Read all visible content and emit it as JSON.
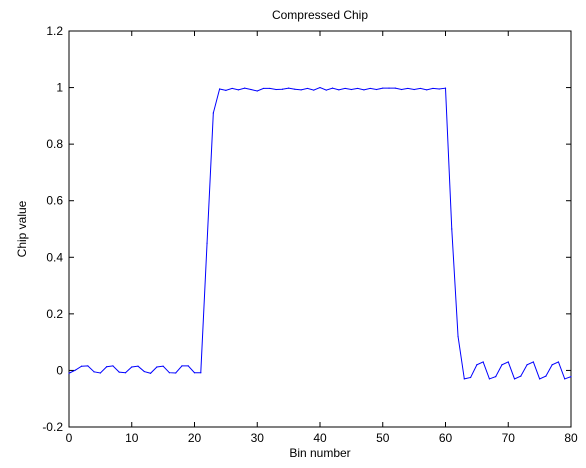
{
  "chart_data": {
    "type": "line",
    "title": "Compressed Chip",
    "xlabel": "Bin number",
    "ylabel": "Chip value",
    "xlim": [
      0,
      80
    ],
    "ylim": [
      -0.2,
      1.2
    ],
    "x_ticks": [
      0,
      10,
      20,
      30,
      40,
      50,
      60,
      70,
      80
    ],
    "y_ticks": [
      -0.2,
      0,
      0.2,
      0.4,
      0.6,
      0.8,
      1,
      1.2
    ],
    "x_tick_labels": [
      "0",
      "10",
      "20",
      "30",
      "40",
      "50",
      "60",
      "70",
      "80"
    ],
    "y_tick_labels": [
      "-0.2",
      "0",
      "0.2",
      "0.4",
      "0.6",
      "0.8",
      "1",
      "1.2"
    ],
    "grid": false,
    "line_color": "#0000ff",
    "series": [
      {
        "x": [
          0,
          1,
          2,
          3,
          4,
          5,
          6,
          7,
          8,
          9,
          10,
          11,
          12,
          13,
          14,
          15,
          16,
          17,
          18,
          19,
          20,
          21,
          22,
          23,
          24,
          25,
          26,
          27,
          28,
          29,
          30,
          31,
          32,
          33,
          34,
          35,
          36,
          37,
          38,
          39,
          40,
          41,
          42,
          43,
          44,
          45,
          46,
          47,
          48,
          49,
          50,
          51,
          52,
          53,
          54,
          55,
          56,
          57,
          58,
          59,
          60,
          61,
          62,
          63,
          64,
          65,
          66,
          67,
          68,
          69,
          70,
          71,
          72,
          73,
          74,
          75,
          76,
          77,
          78,
          79,
          80
        ],
        "y": [
          -0.01,
          0.001,
          0.015,
          0.016,
          -0.005,
          -0.009,
          0.013,
          0.016,
          -0.006,
          -0.008,
          0.012,
          0.015,
          -0.004,
          -0.01,
          0.012,
          0.015,
          -0.008,
          -0.009,
          0.016,
          0.016,
          -0.008,
          -0.008,
          0.45,
          0.91,
          0.995,
          0.99,
          0.997,
          0.992,
          0.998,
          0.993,
          0.988,
          0.997,
          0.997,
          0.993,
          0.994,
          0.998,
          0.994,
          0.992,
          0.997,
          0.991,
          1.0,
          0.991,
          0.998,
          0.992,
          0.997,
          0.993,
          0.997,
          0.992,
          0.997,
          0.993,
          0.998,
          0.998,
          0.998,
          0.993,
          0.997,
          0.993,
          0.997,
          0.992,
          0.997,
          0.995,
          0.998,
          0.5,
          0.12,
          -0.03,
          -0.025,
          0.02,
          0.03,
          -0.03,
          -0.022,
          0.02,
          0.03,
          -0.03,
          -0.02,
          0.02,
          0.03,
          -0.03,
          -0.02,
          0.02,
          0.03,
          -0.03,
          -0.022
        ]
      }
    ]
  }
}
